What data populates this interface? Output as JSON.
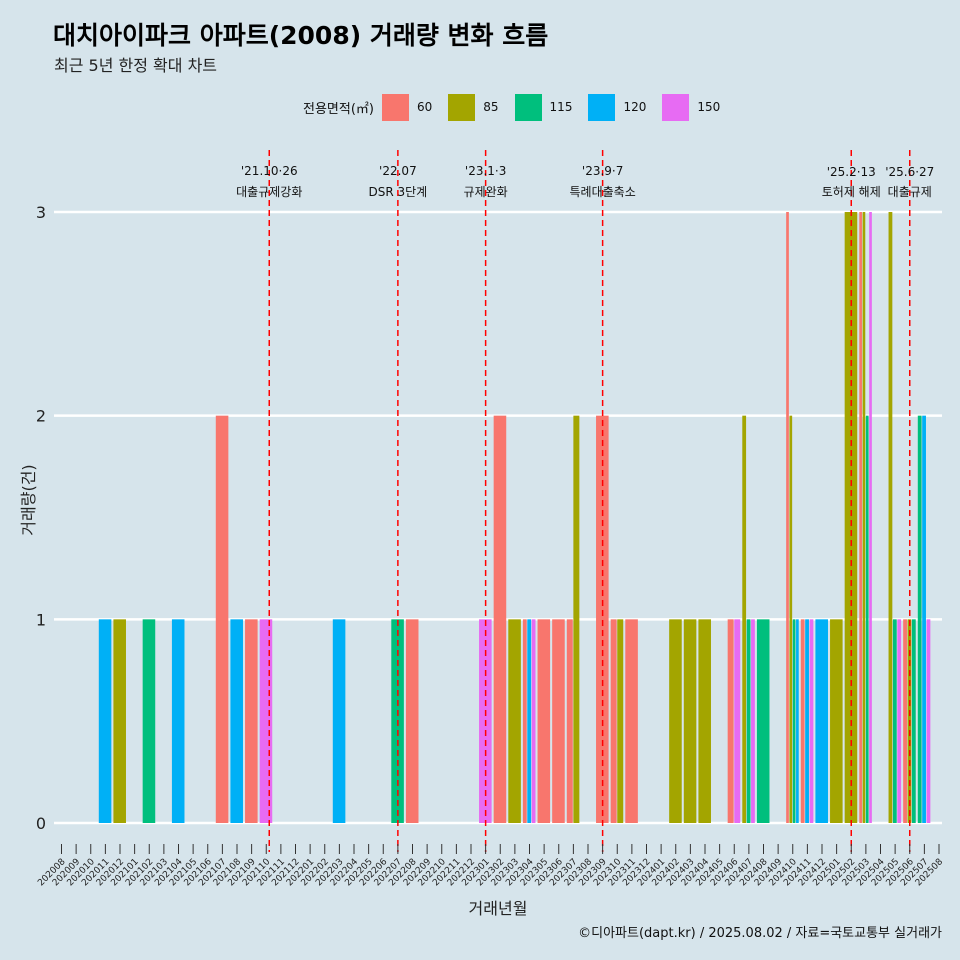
{
  "header": {
    "title": "대치아이파크 아파트(2008) 거래량 변화 흐름",
    "subtitle": "최근 5년 한정 확대 차트"
  },
  "legend": {
    "title": "전용면적(㎡)",
    "items": [
      {
        "label": "60",
        "color": "#f8766d"
      },
      {
        "label": "85",
        "color": "#a3a500"
      },
      {
        "label": "115",
        "color": "#00bf7d"
      },
      {
        "label": "120",
        "color": "#00b0f6"
      },
      {
        "label": "150",
        "color": "#e76bf3"
      }
    ]
  },
  "caption": "©디아파트(dapt.kr) / 2025.08.02 / 자료=국토교통부 실거래가",
  "chart_data": {
    "type": "bar",
    "xlabel": "거래년월",
    "ylabel": "거래량(건)",
    "ylim": [
      0,
      3
    ],
    "yticks": [
      0,
      1,
      2,
      3
    ],
    "grid": true,
    "legend_position": "top",
    "categories": [
      "202008",
      "202009",
      "202010",
      "202011",
      "202012",
      "202101",
      "202102",
      "202103",
      "202104",
      "202105",
      "202106",
      "202107",
      "202108",
      "202109",
      "202110",
      "202111",
      "202112",
      "202201",
      "202202",
      "202203",
      "202204",
      "202205",
      "202206",
      "202207",
      "202208",
      "202209",
      "202210",
      "202211",
      "202212",
      "202301",
      "202302",
      "202303",
      "202304",
      "202305",
      "202306",
      "202307",
      "202308",
      "202309",
      "202310",
      "202311",
      "202312",
      "202401",
      "202402",
      "202403",
      "202404",
      "202405",
      "202406",
      "202407",
      "202408",
      "202409",
      "202410",
      "202411",
      "202412",
      "202501",
      "202502",
      "202503",
      "202504",
      "202505",
      "202506",
      "202507",
      "202508"
    ],
    "bars": [
      {
        "month": "202011",
        "area": "120",
        "value": 1
      },
      {
        "month": "202012",
        "area": "85",
        "value": 1
      },
      {
        "month": "202102",
        "area": "115",
        "value": 1
      },
      {
        "month": "202104",
        "area": "120",
        "value": 1
      },
      {
        "month": "202107",
        "area": "60",
        "value": 2
      },
      {
        "month": "202108",
        "area": "120",
        "value": 1
      },
      {
        "month": "202109",
        "area": "60",
        "value": 1
      },
      {
        "month": "202110",
        "area": "150",
        "value": 1
      },
      {
        "month": "202203",
        "area": "120",
        "value": 1
      },
      {
        "month": "202207",
        "area": "115",
        "value": 1
      },
      {
        "month": "202208",
        "area": "60",
        "value": 1
      },
      {
        "month": "202301",
        "area": "150",
        "value": 1
      },
      {
        "month": "202302",
        "area": "60",
        "value": 2
      },
      {
        "month": "202303",
        "area": "85",
        "value": 1
      },
      {
        "month": "202304",
        "area": "60",
        "value": 1
      },
      {
        "month": "202304",
        "area": "120",
        "value": 1
      },
      {
        "month": "202304",
        "area": "150",
        "value": 1
      },
      {
        "month": "202305",
        "area": "60",
        "value": 1
      },
      {
        "month": "202306",
        "area": "60",
        "value": 1
      },
      {
        "month": "202307",
        "area": "60",
        "value": 1
      },
      {
        "month": "202307",
        "area": "85",
        "value": 2
      },
      {
        "month": "202309",
        "area": "60",
        "value": 2
      },
      {
        "month": "202310",
        "area": "60",
        "value": 1
      },
      {
        "month": "202310",
        "area": "85",
        "value": 1
      },
      {
        "month": "202311",
        "area": "60",
        "value": 1
      },
      {
        "month": "202402",
        "area": "85",
        "value": 1
      },
      {
        "month": "202403",
        "area": "85",
        "value": 1
      },
      {
        "month": "202404",
        "area": "85",
        "value": 1
      },
      {
        "month": "202406",
        "area": "60",
        "value": 1
      },
      {
        "month": "202406",
        "area": "150",
        "value": 1
      },
      {
        "month": "202407",
        "area": "85",
        "value": 2
      },
      {
        "month": "202407",
        "area": "115",
        "value": 1
      },
      {
        "month": "202407",
        "area": "150",
        "value": 1
      },
      {
        "month": "202408",
        "area": "115",
        "value": 1
      },
      {
        "month": "202410",
        "area": "60",
        "value": 3
      },
      {
        "month": "202410",
        "area": "85",
        "value": 2
      },
      {
        "month": "202410",
        "area": "115",
        "value": 1
      },
      {
        "month": "202410",
        "area": "120",
        "value": 1
      },
      {
        "month": "202411",
        "area": "60",
        "value": 1
      },
      {
        "month": "202411",
        "area": "120",
        "value": 1
      },
      {
        "month": "202411",
        "area": "150",
        "value": 1
      },
      {
        "month": "202412",
        "area": "120",
        "value": 1
      },
      {
        "month": "202501",
        "area": "85",
        "value": 1
      },
      {
        "month": "202502",
        "area": "85",
        "value": 3
      },
      {
        "month": "202503",
        "area": "60",
        "value": 3
      },
      {
        "month": "202503",
        "area": "85",
        "value": 3
      },
      {
        "month": "202503",
        "area": "115",
        "value": 2
      },
      {
        "month": "202503",
        "area": "150",
        "value": 3
      },
      {
        "month": "202505",
        "area": "85",
        "value": 3
      },
      {
        "month": "202505",
        "area": "115",
        "value": 1
      },
      {
        "month": "202505",
        "area": "150",
        "value": 1
      },
      {
        "month": "202506",
        "area": "60",
        "value": 1
      },
      {
        "month": "202506",
        "area": "85",
        "value": 1
      },
      {
        "month": "202506",
        "area": "115",
        "value": 1
      },
      {
        "month": "202507",
        "area": "115",
        "value": 2
      },
      {
        "month": "202507",
        "area": "120",
        "value": 2
      },
      {
        "month": "202507",
        "area": "150",
        "value": 1
      }
    ],
    "events": [
      {
        "month": "202110",
        "date_label": "'21.10·26",
        "desc": "대출규제강화"
      },
      {
        "month": "202207",
        "date_label": "'22.07",
        "desc": "DSR 3단계"
      },
      {
        "month": "202301",
        "date_label": "'23.1·3",
        "desc": "규제완화"
      },
      {
        "month": "202309",
        "date_label": "'23.9·7",
        "desc": "특례대출축소"
      },
      {
        "month": "202502",
        "date_label": "'25.2·13",
        "desc": "토허제 해제"
      },
      {
        "month": "202506",
        "date_label": "'25.6·27",
        "desc": "대출규제"
      }
    ],
    "event_line_color": "#ff0000"
  }
}
